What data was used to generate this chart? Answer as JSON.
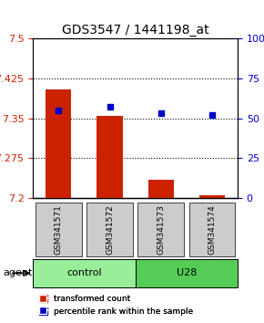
{
  "title": "GDS3547 / 1441198_at",
  "samples": [
    "GSM341571",
    "GSM341572",
    "GSM341573",
    "GSM341574"
  ],
  "groups": [
    "control",
    "control",
    "U28",
    "U28"
  ],
  "bar_values": [
    7.405,
    7.355,
    7.235,
    7.205
  ],
  "bar_bottom": 7.2,
  "percentile_values": [
    55,
    57,
    53,
    52
  ],
  "ylim_left": [
    7.2,
    7.5
  ],
  "ylim_right": [
    0,
    100
  ],
  "yticks_left": [
    7.2,
    7.275,
    7.35,
    7.425,
    7.5
  ],
  "yticks_right": [
    0,
    25,
    50,
    75,
    100
  ],
  "ytick_labels_right": [
    "0",
    "25",
    "50",
    "75",
    "100%"
  ],
  "bar_color": "#cc2200",
  "dot_color": "#0000cc",
  "group_colors": {
    "control": "#99ee99",
    "U28": "#55cc55"
  },
  "grid_color": "#000000",
  "sample_box_color": "#cccccc",
  "agent_label": "agent",
  "legend_bar_label": "transformed count",
  "legend_dot_label": "percentile rank within the sample"
}
